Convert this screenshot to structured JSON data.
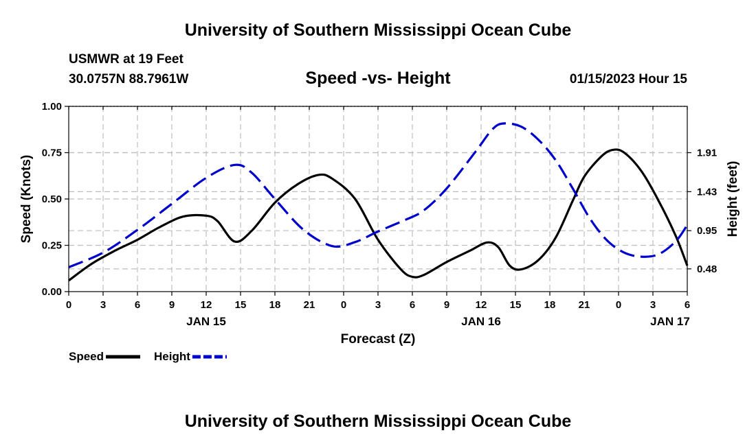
{
  "header": {
    "title": "University of Southern Mississippi Ocean Cube",
    "station": "USMWR at 19 Feet",
    "coords": "30.0757N  88.7961W",
    "subtitle": "Speed -vs- Height",
    "datetime": "01/15/2023 Hour 15"
  },
  "footer": {
    "title": "University of Southern Mississippi Ocean Cube"
  },
  "chart_data": {
    "type": "line",
    "title": "Speed -vs- Height",
    "xlabel": "Forecast (Z)",
    "ylabel": "Speed (Knots)",
    "y2label": "Height (feet)",
    "x_range_hours": [
      0,
      54
    ],
    "x_ticks": [
      {
        "h": 0,
        "label": "0"
      },
      {
        "h": 3,
        "label": "3"
      },
      {
        "h": 6,
        "label": "6"
      },
      {
        "h": 9,
        "label": "9"
      },
      {
        "h": 12,
        "label": "12"
      },
      {
        "h": 15,
        "label": "15"
      },
      {
        "h": 18,
        "label": "18"
      },
      {
        "h": 21,
        "label": "21"
      },
      {
        "h": 24,
        "label": "0"
      },
      {
        "h": 27,
        "label": "3"
      },
      {
        "h": 30,
        "label": "6"
      },
      {
        "h": 33,
        "label": "9"
      },
      {
        "h": 36,
        "label": "12"
      },
      {
        "h": 39,
        "label": "15"
      },
      {
        "h": 42,
        "label": "18"
      },
      {
        "h": 45,
        "label": "21"
      },
      {
        "h": 48,
        "label": "0"
      },
      {
        "h": 51,
        "label": "3"
      },
      {
        "h": 54,
        "label": "6"
      }
    ],
    "day_labels": [
      {
        "h": 12,
        "label": "JAN 15"
      },
      {
        "h": 36,
        "label": "JAN 16"
      },
      {
        "h": 52.5,
        "label": "JAN 17"
      }
    ],
    "ylim": [
      0,
      1
    ],
    "y_ticks": [
      {
        "v": 0,
        "label": "0.00"
      },
      {
        "v": 0.25,
        "label": "0.25"
      },
      {
        "v": 0.5,
        "label": "0.50"
      },
      {
        "v": 0.75,
        "label": "0.75"
      },
      {
        "v": 1,
        "label": "1.00"
      }
    ],
    "y2lim": [
      0.2,
      2.48
    ],
    "y2_ticks": [
      {
        "v": 0.48,
        "label": "0.48"
      },
      {
        "v": 0.95,
        "label": "0.95"
      },
      {
        "v": 1.43,
        "label": "1.43"
      },
      {
        "v": 1.91,
        "label": "1.91"
      }
    ],
    "series": [
      {
        "name": "Speed",
        "axis": "left",
        "color": "#000000",
        "dash": false,
        "points": [
          [
            0,
            0.06
          ],
          [
            2,
            0.15
          ],
          [
            4,
            0.22
          ],
          [
            6,
            0.28
          ],
          [
            8,
            0.35
          ],
          [
            10,
            0.405
          ],
          [
            12,
            0.41
          ],
          [
            13,
            0.38
          ],
          [
            14.5,
            0.27
          ],
          [
            16,
            0.33
          ],
          [
            18,
            0.48
          ],
          [
            20,
            0.58
          ],
          [
            21.8,
            0.63
          ],
          [
            23,
            0.61
          ],
          [
            25,
            0.5
          ],
          [
            27,
            0.28
          ],
          [
            29,
            0.12
          ],
          [
            30,
            0.08
          ],
          [
            31,
            0.09
          ],
          [
            33,
            0.16
          ],
          [
            35,
            0.22
          ],
          [
            36.5,
            0.265
          ],
          [
            37.5,
            0.24
          ],
          [
            38.5,
            0.14
          ],
          [
            39.5,
            0.12
          ],
          [
            41,
            0.17
          ],
          [
            42.5,
            0.29
          ],
          [
            44,
            0.49
          ],
          [
            45,
            0.62
          ],
          [
            46.5,
            0.73
          ],
          [
            47.5,
            0.765
          ],
          [
            48.5,
            0.75
          ],
          [
            50,
            0.65
          ],
          [
            51.5,
            0.49
          ],
          [
            53,
            0.3
          ],
          [
            54,
            0.14
          ]
        ]
      },
      {
        "name": "Height",
        "axis": "right",
        "color": "#0000cc",
        "dash": true,
        "points": [
          [
            0,
            0.5
          ],
          [
            3,
            0.68
          ],
          [
            6,
            0.96
          ],
          [
            9,
            1.28
          ],
          [
            12,
            1.6
          ],
          [
            14.5,
            1.76
          ],
          [
            16,
            1.66
          ],
          [
            18,
            1.34
          ],
          [
            20.5,
            0.96
          ],
          [
            23,
            0.76
          ],
          [
            25,
            0.81
          ],
          [
            27,
            0.94
          ],
          [
            29.5,
            1.09
          ],
          [
            31,
            1.2
          ],
          [
            33,
            1.47
          ],
          [
            35.5,
            1.92
          ],
          [
            37,
            2.2
          ],
          [
            38,
            2.27
          ],
          [
            39.5,
            2.23
          ],
          [
            41,
            2.07
          ],
          [
            42.5,
            1.82
          ],
          [
            44,
            1.47
          ],
          [
            45.5,
            1.1
          ],
          [
            47,
            0.83
          ],
          [
            48.5,
            0.68
          ],
          [
            50,
            0.63
          ],
          [
            51.5,
            0.66
          ],
          [
            53,
            0.82
          ],
          [
            54,
            1.02
          ]
        ]
      }
    ],
    "legend": [
      {
        "label": "Speed",
        "color": "#000000",
        "dash": false
      },
      {
        "label": "Height",
        "color": "#0000cc",
        "dash": true
      }
    ],
    "grid": true
  }
}
